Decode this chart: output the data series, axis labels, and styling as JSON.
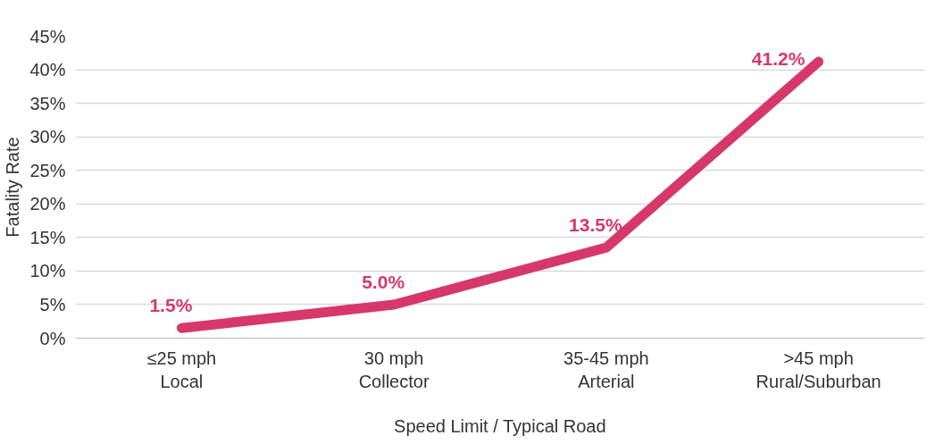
{
  "chart_data": {
    "type": "line",
    "xlabel": "Speed Limit / Typical Road",
    "ylabel": "Fatality Rate",
    "categories": [
      "≤25 mph\nLocal",
      "30 mph\nCollector",
      "35-45 mph\nArterial",
      ">45 mph\nRural/Suburban"
    ],
    "series": [
      {
        "color": "#d6386a",
        "values": [
          1.5,
          5.0,
          13.5,
          41.2
        ],
        "value_labels": [
          "1.5%",
          "5.0%",
          "13.5%",
          "41.2%"
        ]
      }
    ],
    "ylim": [
      0,
      45
    ],
    "yticks": [
      {
        "value": 0,
        "label": "0%"
      },
      {
        "value": 5,
        "label": "5%"
      },
      {
        "value": 10,
        "label": "10%"
      },
      {
        "value": 15,
        "label": "15%"
      },
      {
        "value": 20,
        "label": "20%"
      },
      {
        "value": 25,
        "label": "25%"
      },
      {
        "value": 30,
        "label": "30%"
      },
      {
        "value": 35,
        "label": "35%"
      },
      {
        "value": 40,
        "label": "40%"
      },
      {
        "value": 45,
        "label": "45%"
      }
    ],
    "grid": "y",
    "marker": "none",
    "line_style": "solid"
  }
}
